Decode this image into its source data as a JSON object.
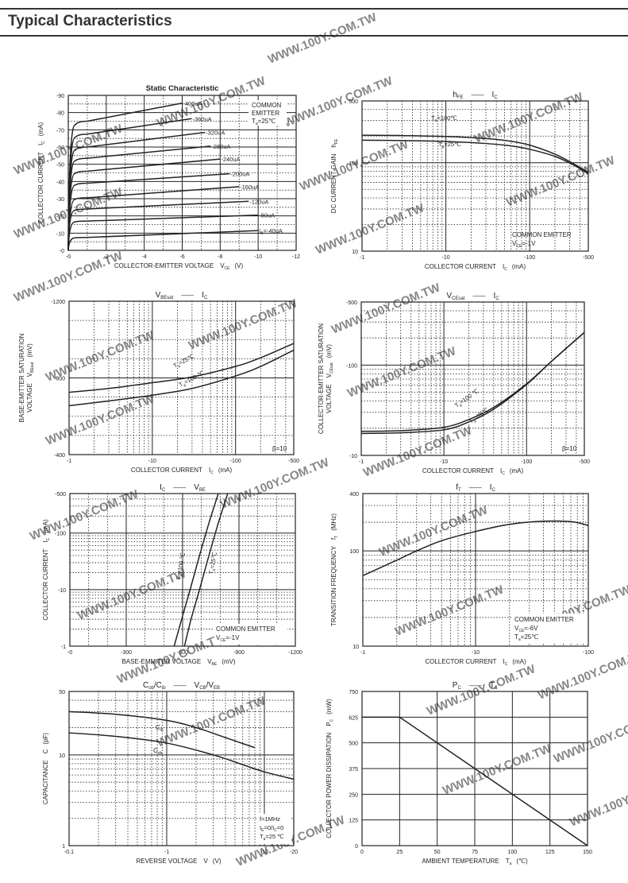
{
  "page": {
    "title": "Typical Characteristics"
  },
  "watermark": "WWW.100Y.COM.TW",
  "chart_data": [
    {
      "id": "static",
      "type": "line",
      "title": "Static Characteristic",
      "xlabel": "COLLECTOR-EMITTER VOLTAGE",
      "xlabel_sym": "V",
      "xlabel_sub": "CE",
      "xlabel_unit": "(V)",
      "ylabel": "COLLECTOR CURRENT",
      "ylabel_sym": "I",
      "ylabel_sub": "C",
      "ylabel_unit": "(mA)",
      "xscale": "linear",
      "yscale": "linear",
      "xlim": [
        0,
        -12
      ],
      "ylim": [
        0,
        -90
      ],
      "xticks": [
        0,
        -2,
        -4,
        -6,
        -8,
        -10,
        -12
      ],
      "xtick_labels": [
        "-0",
        "-2",
        "-4",
        "-6",
        "-8",
        "-10",
        "-12"
      ],
      "yticks": [
        0,
        -10,
        -20,
        -30,
        -40,
        -50,
        -60,
        -70,
        -80,
        -90
      ],
      "ytick_labels": [
        "-0",
        "-10",
        "-20",
        "-30",
        "-40",
        "-50",
        "-60",
        "-70",
        "-80",
        "-90"
      ],
      "annotation": [
        "COMMON",
        "EMITTER",
        "T",
        "a",
        "=25℃"
      ],
      "series": [
        {
          "name": "-40uA",
          "label": "I",
          "label_sub": "B",
          "label_rest": "=-40uA",
          "knee": -7.5,
          "end_x": -10,
          "end_y": -11.5
        },
        {
          "name": "-80uA",
          "label": "-80uA",
          "knee": -17,
          "end_x": -10,
          "end_y": -20.5
        },
        {
          "name": "-120uA",
          "label": "-120uA",
          "knee": -24,
          "end_x": -9.5,
          "end_y": -28.5
        },
        {
          "name": "-160uA",
          "label": "-160uA",
          "knee": -30.5,
          "end_x": -9,
          "end_y": -37
        },
        {
          "name": "-200uA",
          "label": "-200uA",
          "knee": -39,
          "end_x": -8.5,
          "end_y": -44.5
        },
        {
          "name": "-240uA",
          "label": "-240uA",
          "knee": -46,
          "end_x": -8,
          "end_y": -53
        },
        {
          "name": "-280uA",
          "label": "-280uA",
          "knee": -53.5,
          "end_x": -7.5,
          "end_y": -60.5
        },
        {
          "name": "-320uA",
          "label": "-320uA",
          "knee": -60,
          "end_x": -7.2,
          "end_y": -68.5
        },
        {
          "name": "-360uA",
          "label": "-360uA",
          "knee": -67.5,
          "end_x": -6.5,
          "end_y": -76.5
        },
        {
          "name": "-400uA",
          "label": "-400uA",
          "knee": -75,
          "end_x": -6,
          "end_y": -85.5
        }
      ]
    },
    {
      "id": "hfe",
      "type": "line",
      "title_parts": [
        "h",
        "FE",
        "I",
        "C"
      ],
      "xlabel": "COLLECTOR CURRENT",
      "xlabel_sym": "I",
      "xlabel_sub": "C",
      "xlabel_unit": "(mA)",
      "ylabel": "DC CURRENT GAIN",
      "ylabel_sym": "h",
      "ylabel_sub": "FE",
      "xscale": "log",
      "yscale": "log",
      "xlim": [
        1,
        500
      ],
      "ylim": [
        10,
        500
      ],
      "xticks": [
        1,
        10,
        100,
        500
      ],
      "xtick_labels": [
        "-1",
        "-10",
        "-100",
        "-500"
      ],
      "yticks": [
        10,
        100,
        500
      ],
      "ytick_labels": [
        "10",
        "100",
        "500"
      ],
      "annotation": [
        "COMMON EMITTER",
        "V",
        "CE",
        "=-1V"
      ],
      "series": [
        {
          "name": "Ta=100℃",
          "label": "T",
          "label_sub": "a",
          "label_rest": "=100℃",
          "x": [
            1,
            3,
            10,
            30,
            60,
            100,
            200,
            350,
            500
          ],
          "y": [
            205,
            203,
            198,
            188,
            175,
            158,
            125,
            95,
            78
          ]
        },
        {
          "name": "Ta=25℃",
          "label": "T",
          "label_sub": "a",
          "label_rest": "=25℃",
          "x": [
            1,
            3,
            10,
            30,
            60,
            100,
            200,
            350,
            500
          ],
          "y": [
            180,
            178,
            174,
            165,
            155,
            142,
            118,
            92,
            75
          ]
        }
      ]
    },
    {
      "id": "vbesat",
      "type": "line",
      "title_parts": [
        "V",
        "BEsat",
        "I",
        "C"
      ],
      "xlabel": "COLLECTOR CURRENT",
      "xlabel_sym": "I",
      "xlabel_sub": "C",
      "xlabel_unit": "(mA)",
      "ylabel": "BASE-EMITTER SATURATION",
      "ylabel2": "VOLTAGE",
      "ylabel_sym": "V",
      "ylabel_sub": "BEsat",
      "ylabel_unit": "(mV)",
      "xscale": "log",
      "yscale": "linear",
      "xlim": [
        1,
        500
      ],
      "ylim": [
        -400,
        -1200
      ],
      "xticks": [
        1,
        10,
        100,
        500
      ],
      "xtick_labels": [
        "-1",
        "-10",
        "-100",
        "-500"
      ],
      "yticks": [
        -400,
        -800,
        -1200
      ],
      "ytick_labels": [
        "-400",
        "-800",
        "-1200"
      ],
      "annotation": [
        "β=10"
      ],
      "series": [
        {
          "name": "Ta=25℃",
          "label": "T",
          "label_sub": "a",
          "label_rest": "=25℃",
          "x": [
            1,
            3,
            10,
            30,
            100,
            200,
            500
          ],
          "y": [
            -725,
            -745,
            -775,
            -805,
            -860,
            -905,
            -980
          ]
        },
        {
          "name": "Ta=100℃",
          "label": "T",
          "label_sub": "a",
          "label_rest": "=100 ℃",
          "x": [
            1,
            3,
            10,
            30,
            100,
            200,
            500
          ],
          "y": [
            -655,
            -680,
            -710,
            -745,
            -810,
            -860,
            -945
          ]
        }
      ]
    },
    {
      "id": "vcesat",
      "type": "line",
      "title_parts": [
        "V",
        "CEsat",
        "I",
        "C"
      ],
      "xlabel": "COLLECTOR CURRENT",
      "xlabel_sym": "I",
      "xlabel_sub": "C",
      "xlabel_unit": "(mA)",
      "ylabel": "COLLECTOR-EMITTER SATURATION",
      "ylabel2": "VOLTAGE",
      "ylabel_sym": "V",
      "ylabel_sub": "CEsat",
      "ylabel_unit": "(mV)",
      "xscale": "log",
      "yscale": "log",
      "xlim": [
        1,
        500
      ],
      "ylim": [
        10,
        500
      ],
      "xticks": [
        1,
        10,
        100,
        500
      ],
      "xtick_labels": [
        "-1",
        "-10",
        "-100",
        "-500"
      ],
      "yticks": [
        10,
        100,
        500
      ],
      "ytick_labels": [
        "-10",
        "-100",
        "-500"
      ],
      "annotation": [
        "β=10"
      ],
      "series": [
        {
          "name": "Ta=100℃",
          "label": "T",
          "label_sub": "a",
          "label_rest": "=100 ℃",
          "x": [
            1,
            3,
            10,
            20,
            40,
            100,
            200,
            500
          ],
          "y": [
            18.5,
            18.8,
            20.5,
            25,
            34,
            62,
            110,
            230
          ]
        },
        {
          "name": "Ta=25℃",
          "label": "T",
          "label_sub": "a",
          "label_rest": "=25℃",
          "x": [
            1,
            3,
            10,
            20,
            40,
            100,
            200,
            500
          ],
          "y": [
            17.5,
            17.8,
            19.2,
            23.5,
            32.5,
            61,
            110,
            230
          ]
        }
      ]
    },
    {
      "id": "icvbe",
      "type": "line",
      "title_parts": [
        "I",
        "C",
        "V",
        "BE"
      ],
      "xlabel": "BASE-EMMITER VOLTAGE",
      "xlabel_sym": "V",
      "xlabel_sub": "BE",
      "xlabel_unit": "(mV)",
      "ylabel": "COLLECTOR CURRENT",
      "ylabel_sym": "I",
      "ylabel_sub": "C",
      "ylabel_unit": "(mA)",
      "xscale": "linear",
      "yscale": "log",
      "xlim": [
        0,
        -1200
      ],
      "ylim": [
        1,
        500
      ],
      "xticks": [
        0,
        -300,
        -600,
        -900,
        -1200
      ],
      "xtick_labels": [
        "-0",
        "-300",
        "-600",
        "-900",
        "-1200"
      ],
      "yticks": [
        1,
        10,
        100,
        500
      ],
      "ytick_labels": [
        "-1",
        "-10",
        "-100",
        "-500"
      ],
      "annotation": [
        "COMMON EMITTER",
        "V",
        "CE",
        "=-1V"
      ],
      "series": [
        {
          "name": "Ta=100℃",
          "label": "T",
          "label_sub": "a",
          "label_rest": "=100 ℃",
          "x": [
            -555,
            -595,
            -640,
            -690,
            -740,
            -790
          ],
          "y": [
            1,
            3,
            10,
            40,
            150,
            500
          ]
        },
        {
          "name": "Ta=25℃",
          "label": "T",
          "label_sub": "a",
          "label_rest": "=25℃",
          "x": [
            -610,
            -645,
            -690,
            -740,
            -790,
            -840
          ],
          "y": [
            1,
            3,
            10,
            40,
            150,
            500
          ]
        }
      ]
    },
    {
      "id": "ft",
      "type": "line",
      "title_parts": [
        "f",
        "T",
        "I",
        "C"
      ],
      "xlabel": "COLLECTOR CURRENT",
      "xlabel_sym": "I",
      "xlabel_sub": "C",
      "xlabel_unit": "(mA)",
      "ylabel": "TRANSITION FREQUENCY",
      "ylabel_sym": "f",
      "ylabel_sub": "T",
      "ylabel_unit": "(MHz)",
      "xscale": "log",
      "yscale": "log",
      "xlim": [
        1,
        100
      ],
      "ylim": [
        10,
        400
      ],
      "xticks": [
        1,
        10,
        100
      ],
      "xtick_labels": [
        "-1",
        "-10",
        "-100"
      ],
      "yticks": [
        10,
        100,
        400
      ],
      "ytick_labels": [
        "10",
        "100",
        "400"
      ],
      "annotation": [
        "COMMON EMITTER",
        "V",
        "CE",
        "=-6V",
        "T",
        "a",
        "=25℃"
      ],
      "series": [
        {
          "name": "fT",
          "x": [
            1,
            2,
            3,
            5,
            10,
            20,
            40,
            70,
            100
          ],
          "y": [
            55,
            80,
            100,
            128,
            160,
            190,
            205,
            203,
            185
          ]
        }
      ]
    },
    {
      "id": "cap",
      "type": "line",
      "title_parts": [
        "C",
        "ob",
        "/C",
        "ib",
        "V",
        "CB",
        "/V",
        "EB"
      ],
      "xlabel": "REVERSE  VOLTAGE",
      "xlabel_sym": "V",
      "xlabel_unit": "(V)",
      "ylabel": "CAPACITANCE",
      "ylabel_sym": "C",
      "ylabel_unit": "(pF)",
      "xscale": "log",
      "yscale": "log",
      "xlim": [
        0.1,
        20
      ],
      "ylim": [
        1,
        50
      ],
      "xticks": [
        0.1,
        1,
        10,
        20
      ],
      "xtick_labels": [
        "-0.1",
        "-1",
        "-10",
        "-20"
      ],
      "yticks": [
        1,
        10,
        50
      ],
      "ytick_labels": [
        "1",
        "10",
        "50"
      ],
      "annotation": [
        "f=1MHz",
        "I",
        "E",
        "=0/I",
        "C",
        "=0",
        "T",
        "a",
        "=25 ℃"
      ],
      "series": [
        {
          "name": "Cib",
          "label": "C",
          "label_sub": "ib",
          "x": [
            0.1,
            0.3,
            1,
            2,
            4,
            8
          ],
          "y": [
            30,
            28,
            24,
            20,
            15.5,
            12
          ]
        },
        {
          "name": "Cob",
          "label": "C",
          "label_sub": "ob",
          "x": [
            0.1,
            0.3,
            1,
            3,
            6,
            10,
            20
          ],
          "y": [
            17.5,
            16,
            13.5,
            10,
            7.8,
            6.5,
            5.4
          ]
        }
      ]
    },
    {
      "id": "pc",
      "type": "line",
      "title_parts": [
        "P",
        "C",
        "T",
        "a"
      ],
      "xlabel": "AMBIENT TEMPERATURE",
      "xlabel_sym": "T",
      "xlabel_sub": "a",
      "xlabel_unit": "(℃)",
      "ylabel": "COLLECTOR POWER DISSIPATION",
      "ylabel_sym": "P",
      "ylabel_sub": "C",
      "ylabel_unit": "(mW)",
      "xscale": "linear",
      "yscale": "linear",
      "xlim": [
        0,
        150
      ],
      "ylim": [
        0,
        750
      ],
      "xticks": [
        0,
        25,
        50,
        75,
        100,
        125,
        150
      ],
      "xtick_labels": [
        "0",
        "25",
        "50",
        "75",
        "100",
        "125",
        "150"
      ],
      "yticks": [
        0,
        125,
        250,
        375,
        500,
        625,
        750
      ],
      "ytick_labels": [
        "0",
        "125",
        "250",
        "375",
        "500",
        "625",
        "750"
      ],
      "series": [
        {
          "name": "Pc",
          "x": [
            0,
            25,
            150
          ],
          "y": [
            625,
            625,
            0
          ]
        }
      ]
    }
  ]
}
